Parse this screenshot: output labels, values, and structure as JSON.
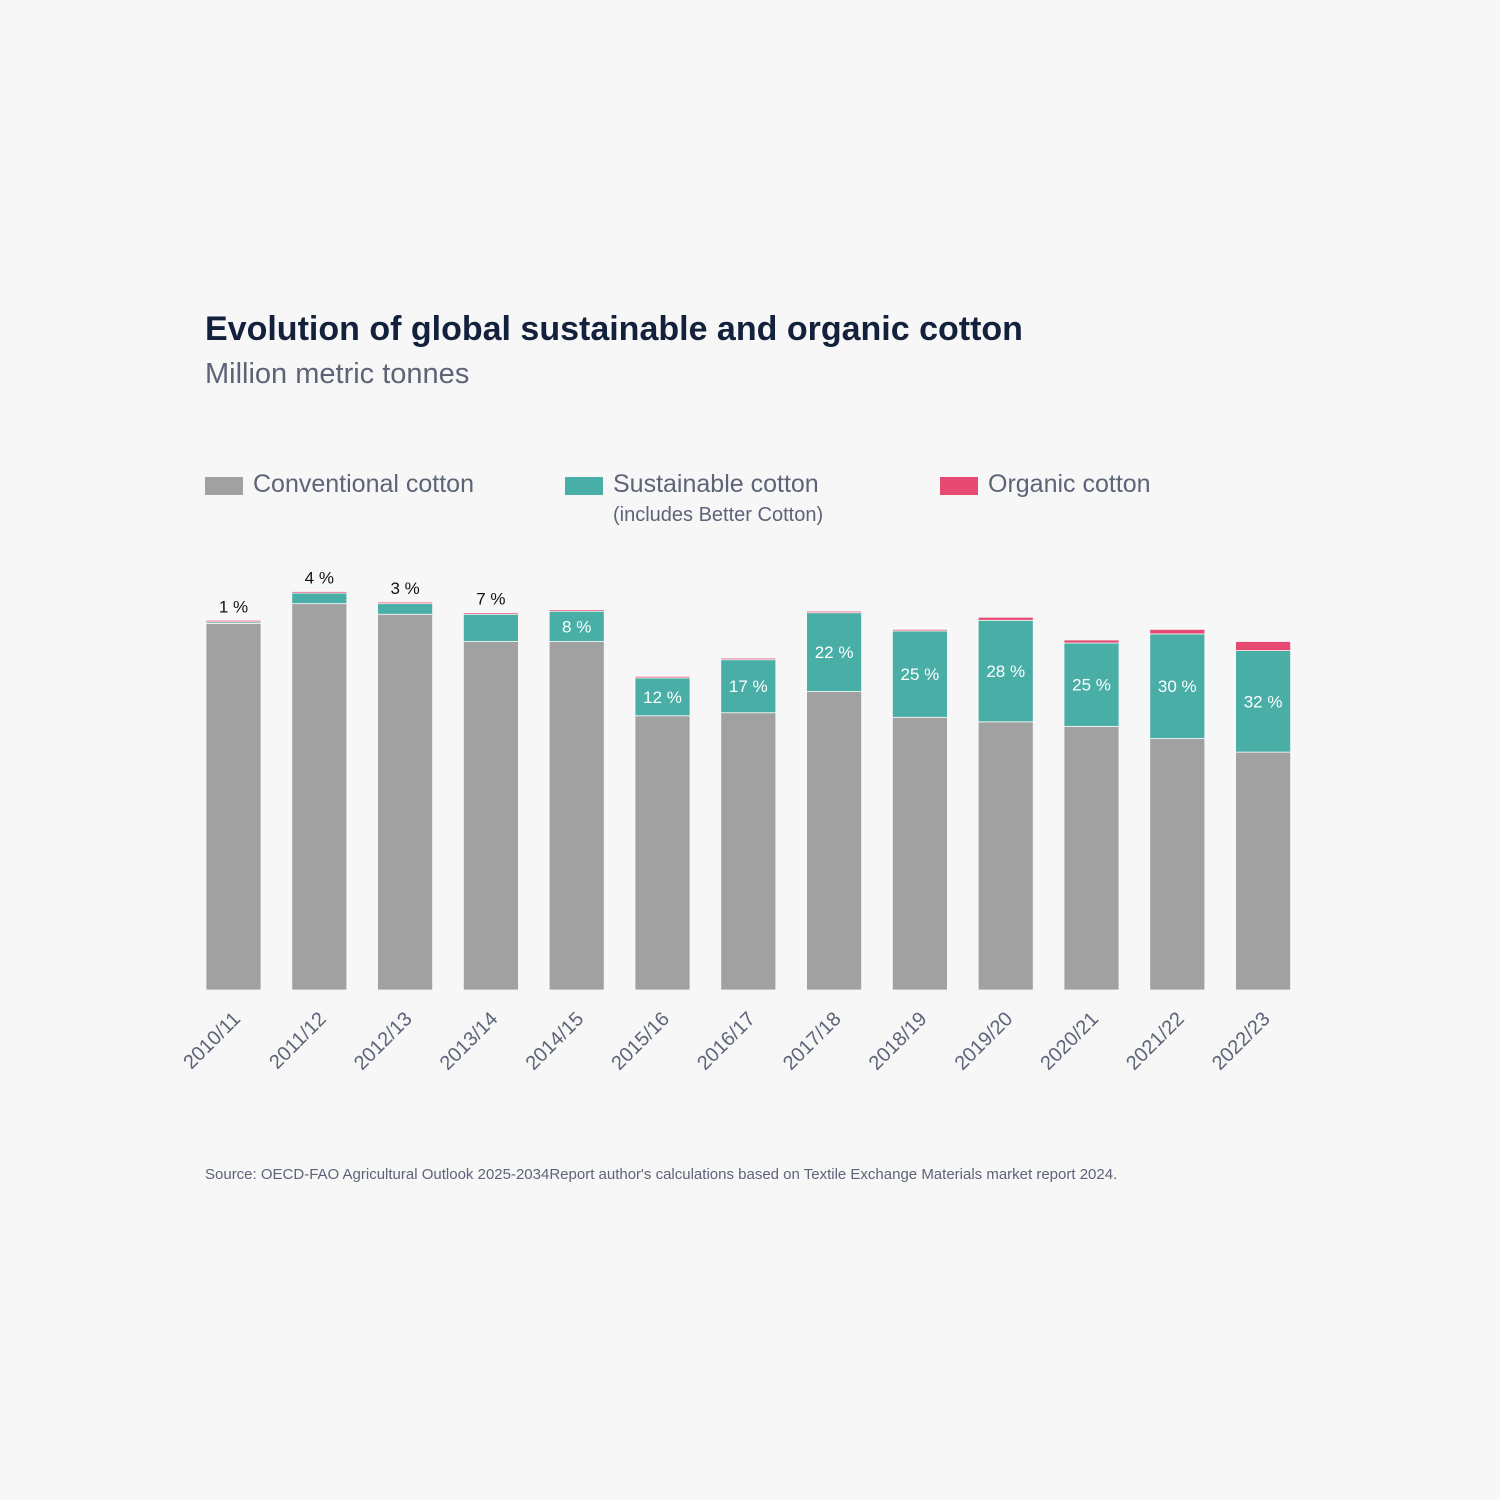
{
  "title": "Evolution of global sustainable and organic cotton",
  "subtitle": "Million metric tonnes",
  "legend": [
    {
      "label": "Conventional cotton",
      "note": "",
      "color": "#a1a1a1"
    },
    {
      "label": "Sustainable cotton",
      "note": "(includes Better Cotton)",
      "color": "#48aea6"
    },
    {
      "label": "Organic cotton",
      "note": "",
      "color": "#e64a73"
    }
  ],
  "source": "Source: OECD-FAO Agricultural Outlook 2025-2034Report author's calculations based on Textile Exchange Materials market report 2024.",
  "chart_data": {
    "type": "bar",
    "stacked": true,
    "title": "Evolution of global sustainable and organic cotton",
    "subtitle": "Million metric tonnes",
    "categories": [
      "2010/11",
      "2011/12",
      "2012/13",
      "2013/14",
      "2014/15",
      "2015/16",
      "2016/17",
      "2017/18",
      "2018/19",
      "2019/20",
      "2020/21",
      "2021/22",
      "2022/23"
    ],
    "series": [
      {
        "name": "Conventional cotton",
        "color": "#a1a1a1",
        "values": [
          24.2,
          25.5,
          24.8,
          23.0,
          23.0,
          18.1,
          18.3,
          19.7,
          18.0,
          17.7,
          17.4,
          16.6,
          15.7
        ]
      },
      {
        "name": "Sustainable cotton",
        "color": "#48aea6",
        "values": [
          0.1,
          0.7,
          0.7,
          1.8,
          2.0,
          2.5,
          3.5,
          5.2,
          5.7,
          6.7,
          5.5,
          6.9,
          6.7
        ]
      },
      {
        "name": "Organic cotton",
        "color": "#e64a73",
        "values": [
          0.1,
          0.1,
          0.1,
          0.1,
          0.1,
          0.1,
          0.1,
          0.1,
          0.1,
          0.2,
          0.2,
          0.3,
          0.6
        ]
      }
    ],
    "data_labels": [
      "1 %",
      "4 %",
      "3 %",
      "7 %",
      "8 %",
      "12 %",
      "17 %",
      "22 %",
      "25 %",
      "28 %",
      "25 %",
      "30 %",
      "32 %"
    ],
    "ylim": [
      0,
      26.4
    ],
    "grid": false,
    "legend_position": "top"
  }
}
